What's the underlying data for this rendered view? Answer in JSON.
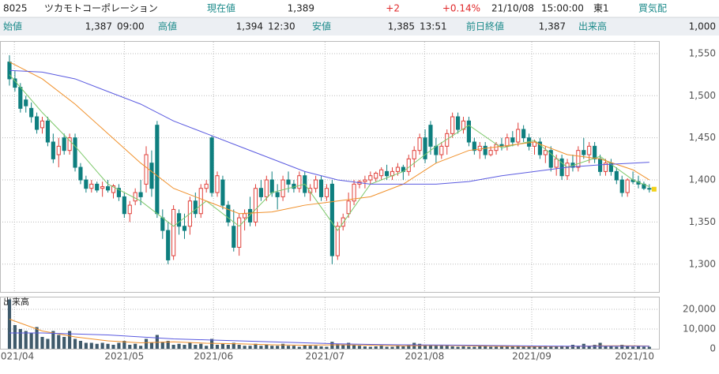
{
  "header": {
    "code": "8025",
    "name": "ツカモトコーポレーション",
    "price_label": "現在値",
    "price": "1,389",
    "change": "+2",
    "change_pct": "+0.14%",
    "date": "21/10/08",
    "time": "15:00:00",
    "market": "東1",
    "quote_label": "買気配",
    "open_label": "始値",
    "open": "1,387",
    "open_time": "09:00",
    "high_label": "高値",
    "high": "1,394",
    "high_time": "12:30",
    "low_label": "安値",
    "low": "1,385",
    "low_time": "13:51",
    "prev_label": "前日終値",
    "prev": "1,387",
    "volume_label": "出来高",
    "volume": "1,000"
  },
  "chart_data": [
    {
      "type": "candlestick",
      "ylim": [
        1267,
        1564
      ],
      "yticks": [
        {
          "value": 1300,
          "label": "1,300"
        },
        {
          "value": 1350,
          "label": "1,350"
        },
        {
          "value": 1400,
          "label": "1,400"
        },
        {
          "value": 1450,
          "label": "1,450"
        },
        {
          "value": 1500,
          "label": "1,500"
        },
        {
          "value": 1550,
          "label": "1,550"
        }
      ],
      "xlim": [
        -1.73,
        118.9
      ],
      "xticks": [
        {
          "value": 0.9,
          "label": "2021/04"
        },
        {
          "value": 21,
          "label": "2021/05"
        },
        {
          "value": 37.3,
          "label": "2021/06"
        },
        {
          "value": 57.7,
          "label": "2021/07"
        },
        {
          "value": 75.9,
          "label": "2021/08"
        },
        {
          "value": 95.5,
          "label": "2021/09"
        },
        {
          "value": 114.3,
          "label": "2021/10"
        }
      ],
      "grid": true,
      "up_color": "#e0403a",
      "down_color": "#0e7f7f",
      "last_color": "#f2d21b",
      "ohlc": [
        [
          1540,
          1548,
          1512,
          1520
        ],
        [
          1520,
          1530,
          1505,
          1510
        ],
        [
          1510,
          1515,
          1480,
          1485
        ],
        [
          1495,
          1500,
          1480,
          1488
        ],
        [
          1485,
          1492,
          1468,
          1475
        ],
        [
          1475,
          1480,
          1455,
          1460
        ],
        [
          1462,
          1475,
          1455,
          1470
        ],
        [
          1470,
          1475,
          1440,
          1445
        ],
        [
          1445,
          1455,
          1420,
          1425
        ],
        [
          1430,
          1450,
          1415,
          1440
        ],
        [
          1450,
          1455,
          1430,
          1435
        ],
        [
          1435,
          1455,
          1430,
          1450
        ],
        [
          1450,
          1455,
          1410,
          1415
        ],
        [
          1415,
          1420,
          1395,
          1400
        ],
        [
          1400,
          1405,
          1385,
          1390
        ],
        [
          1390,
          1400,
          1385,
          1395
        ],
        [
          1395,
          1398,
          1385,
          1388
        ],
        [
          1390,
          1398,
          1380,
          1392
        ],
        [
          1392,
          1400,
          1385,
          1388
        ],
        [
          1385,
          1395,
          1378,
          1393
        ],
        [
          1390,
          1395,
          1375,
          1380
        ],
        [
          1380,
          1385,
          1355,
          1360
        ],
        [
          1360,
          1375,
          1350,
          1370
        ],
        [
          1375,
          1390,
          1370,
          1385
        ],
        [
          1385,
          1400,
          1370,
          1380
        ],
        [
          1395,
          1440,
          1385,
          1430
        ],
        [
          1420,
          1435,
          1380,
          1390
        ],
        [
          1465,
          1470,
          1355,
          1360
        ],
        [
          1355,
          1365,
          1330,
          1340
        ],
        [
          1340,
          1350,
          1300,
          1305
        ],
        [
          1310,
          1370,
          1305,
          1365
        ],
        [
          1360,
          1365,
          1335,
          1345
        ],
        [
          1345,
          1360,
          1330,
          1340
        ],
        [
          1345,
          1380,
          1335,
          1375
        ],
        [
          1375,
          1385,
          1355,
          1360
        ],
        [
          1360,
          1395,
          1355,
          1390
        ],
        [
          1390,
          1400,
          1385,
          1395
        ],
        [
          1450,
          1452,
          1380,
          1385
        ],
        [
          1385,
          1410,
          1380,
          1405
        ],
        [
          1400,
          1405,
          1365,
          1370
        ],
        [
          1370,
          1375,
          1345,
          1350
        ],
        [
          1345,
          1365,
          1315,
          1320
        ],
        [
          1320,
          1360,
          1310,
          1355
        ],
        [
          1355,
          1365,
          1340,
          1360
        ],
        [
          1365,
          1380,
          1345,
          1350
        ],
        [
          1350,
          1395,
          1345,
          1390
        ],
        [
          1390,
          1400,
          1375,
          1380
        ],
        [
          1380,
          1405,
          1375,
          1400
        ],
        [
          1400,
          1410,
          1380,
          1385
        ],
        [
          1385,
          1395,
          1365,
          1380
        ],
        [
          1380,
          1405,
          1375,
          1400
        ],
        [
          1400,
          1410,
          1385,
          1395
        ],
        [
          1395,
          1400,
          1385,
          1390
        ],
        [
          1390,
          1410,
          1385,
          1405
        ],
        [
          1405,
          1410,
          1380,
          1385
        ],
        [
          1385,
          1395,
          1375,
          1390
        ],
        [
          1390,
          1405,
          1385,
          1400
        ],
        [
          1400,
          1405,
          1375,
          1380
        ],
        [
          1380,
          1395,
          1375,
          1390
        ],
        [
          1395,
          1400,
          1300,
          1310
        ],
        [
          1310,
          1350,
          1305,
          1345
        ],
        [
          1345,
          1360,
          1340,
          1355
        ],
        [
          1360,
          1385,
          1355,
          1375
        ],
        [
          1375,
          1400,
          1370,
          1395
        ],
        [
          1395,
          1400,
          1390,
          1398
        ],
        [
          1398,
          1405,
          1390,
          1400
        ],
        [
          1400,
          1410,
          1395,
          1405
        ],
        [
          1402,
          1410,
          1398,
          1408
        ],
        [
          1405,
          1415,
          1400,
          1412
        ],
        [
          1410,
          1418,
          1400,
          1405
        ],
        [
          1405,
          1415,
          1400,
          1410
        ],
        [
          1410,
          1420,
          1405,
          1415
        ],
        [
          1415,
          1418,
          1400,
          1410
        ],
        [
          1410,
          1430,
          1405,
          1425
        ],
        [
          1425,
          1440,
          1415,
          1435
        ],
        [
          1435,
          1455,
          1430,
          1450
        ],
        [
          1450,
          1460,
          1420,
          1425
        ],
        [
          1465,
          1470,
          1430,
          1440
        ],
        [
          1440,
          1450,
          1420,
          1430
        ],
        [
          1430,
          1445,
          1425,
          1440
        ],
        [
          1440,
          1460,
          1430,
          1455
        ],
        [
          1455,
          1480,
          1450,
          1475
        ],
        [
          1475,
          1480,
          1455,
          1460
        ],
        [
          1460,
          1475,
          1455,
          1470
        ],
        [
          1470,
          1475,
          1440,
          1445
        ],
        [
          1445,
          1450,
          1430,
          1435
        ],
        [
          1435,
          1445,
          1425,
          1440
        ],
        [
          1440,
          1445,
          1425,
          1430
        ],
        [
          1430,
          1440,
          1428,
          1435
        ],
        [
          1435,
          1445,
          1430,
          1442
        ],
        [
          1442,
          1450,
          1435,
          1440
        ],
        [
          1440,
          1455,
          1435,
          1450
        ],
        [
          1450,
          1458,
          1440,
          1445
        ],
        [
          1445,
          1468,
          1440,
          1460
        ],
        [
          1460,
          1465,
          1445,
          1450
        ],
        [
          1450,
          1455,
          1435,
          1440
        ],
        [
          1440,
          1448,
          1430,
          1445
        ],
        [
          1445,
          1450,
          1425,
          1430
        ],
        [
          1430,
          1440,
          1420,
          1435
        ],
        [
          1435,
          1440,
          1410,
          1415
        ],
        [
          1415,
          1430,
          1405,
          1425
        ],
        [
          1425,
          1430,
          1400,
          1405
        ],
        [
          1405,
          1425,
          1400,
          1420
        ],
        [
          1420,
          1430,
          1410,
          1415
        ],
        [
          1415,
          1440,
          1410,
          1435
        ],
        [
          1435,
          1450,
          1425,
          1430
        ],
        [
          1430,
          1445,
          1420,
          1440
        ],
        [
          1440,
          1445,
          1420,
          1425
        ],
        [
          1425,
          1430,
          1405,
          1410
        ],
        [
          1410,
          1425,
          1405,
          1420
        ],
        [
          1420,
          1425,
          1405,
          1410
        ],
        [
          1410,
          1415,
          1395,
          1400
        ],
        [
          1400,
          1405,
          1380,
          1385
        ],
        [
          1385,
          1402,
          1380,
          1400
        ],
        [
          1400,
          1410,
          1395,
          1398
        ],
        [
          1398,
          1405,
          1390,
          1395
        ],
        [
          1395,
          1398,
          1388,
          1390
        ],
        [
          1390,
          1395,
          1385,
          1389
        ]
      ],
      "lines": [
        {
          "color": "#7cc86a",
          "x": [
            0,
            6,
            12,
            18,
            24,
            30,
            36,
            42,
            48,
            54,
            60,
            66,
            72,
            78,
            84,
            90,
            96,
            102,
            108,
            114,
            117
          ],
          "values": [
            1525,
            1480,
            1440,
            1395,
            1375,
            1345,
            1375,
            1345,
            1385,
            1395,
            1340,
            1395,
            1410,
            1440,
            1465,
            1438,
            1447,
            1415,
            1428,
            1400,
            1392
          ]
        },
        {
          "color": "#f0902a",
          "x": [
            0,
            6,
            12,
            18,
            24,
            30,
            36,
            42,
            48,
            54,
            60,
            66,
            72,
            78,
            84,
            90,
            96,
            102,
            108,
            114,
            117
          ],
          "values": [
            1540,
            1520,
            1490,
            1455,
            1420,
            1390,
            1375,
            1360,
            1362,
            1370,
            1375,
            1380,
            1395,
            1420,
            1435,
            1440,
            1445,
            1430,
            1425,
            1412,
            1400
          ]
        },
        {
          "color": "#5a5ae0",
          "x": [
            0,
            6,
            12,
            18,
            24,
            30,
            36,
            42,
            48,
            54,
            60,
            66,
            72,
            78,
            84,
            90,
            96,
            102,
            108,
            114,
            117
          ],
          "values": [
            1530,
            1528,
            1520,
            1505,
            1490,
            1470,
            1455,
            1440,
            1425,
            1410,
            1400,
            1395,
            1395,
            1395,
            1398,
            1405,
            1410,
            1415,
            1418,
            1420,
            1421
          ]
        }
      ]
    },
    {
      "type": "bar",
      "label": "出来高",
      "ylim": [
        0,
        26000
      ],
      "yticks": [
        0,
        {
          "value": 10000,
          "label": "10,000"
        },
        {
          "value": 20000,
          "label": "20,000"
        }
      ],
      "color": "#3f5a6b",
      "values": [
        25000,
        12000,
        10000,
        9000,
        8000,
        11000,
        6000,
        5000,
        9000,
        7000,
        6000,
        9000,
        5000,
        4000,
        3000,
        3000,
        2500,
        3000,
        2500,
        2000,
        3000,
        4000,
        2000,
        2500,
        1500,
        5000,
        3000,
        7000,
        3500,
        4000,
        2000,
        2500,
        2000,
        3000,
        2000,
        2500,
        1500,
        5000,
        2000,
        2500,
        2000,
        3000,
        2000,
        1500,
        1500,
        2500,
        1500,
        2000,
        1500,
        1500,
        2500,
        1500,
        1500,
        1000,
        2000,
        1500,
        1500,
        1200,
        1000,
        3500,
        2500,
        2000,
        3000,
        2000,
        1500,
        1200,
        1000,
        1200,
        1500,
        1000,
        1000,
        1500,
        1200,
        2000,
        3000,
        2500,
        1500,
        2000,
        1500,
        1500,
        1500,
        1200,
        1000,
        1200,
        1000,
        1000,
        1200,
        1500,
        1000,
        1000,
        1200,
        1000,
        1000,
        1500,
        1000,
        1000,
        1200,
        1000,
        1500,
        1000,
        1200,
        1500,
        1000,
        2000,
        1500,
        2500,
        1500,
        2000,
        3000,
        1500,
        1200,
        1000,
        2000,
        1500,
        1000,
        1200,
        1000,
        1000
      ],
      "lines": [
        {
          "color": "#f0902a",
          "x": [
            0,
            6,
            12,
            18,
            24,
            30,
            36,
            42,
            48,
            54,
            60,
            66,
            72,
            78,
            84,
            90,
            96,
            102,
            108,
            114,
            117
          ],
          "values": [
            15000,
            9000,
            6000,
            4000,
            3000,
            3500,
            2800,
            2500,
            2000,
            1800,
            2000,
            1800,
            1500,
            1700,
            1500,
            1200,
            1100,
            1200,
            1500,
            1500,
            1400
          ]
        },
        {
          "color": "#5a5ae0",
          "x": [
            0,
            6,
            12,
            18,
            24,
            30,
            36,
            42,
            48,
            54,
            60,
            66,
            72,
            78,
            84,
            90,
            96,
            102,
            108,
            114,
            117
          ],
          "values": [
            8000,
            8000,
            7500,
            7000,
            6000,
            5000,
            4500,
            4000,
            3500,
            3000,
            2500,
            2200,
            2000,
            1900,
            1800,
            1600,
            1400,
            1300,
            1300,
            1300,
            1300
          ]
        }
      ]
    }
  ]
}
